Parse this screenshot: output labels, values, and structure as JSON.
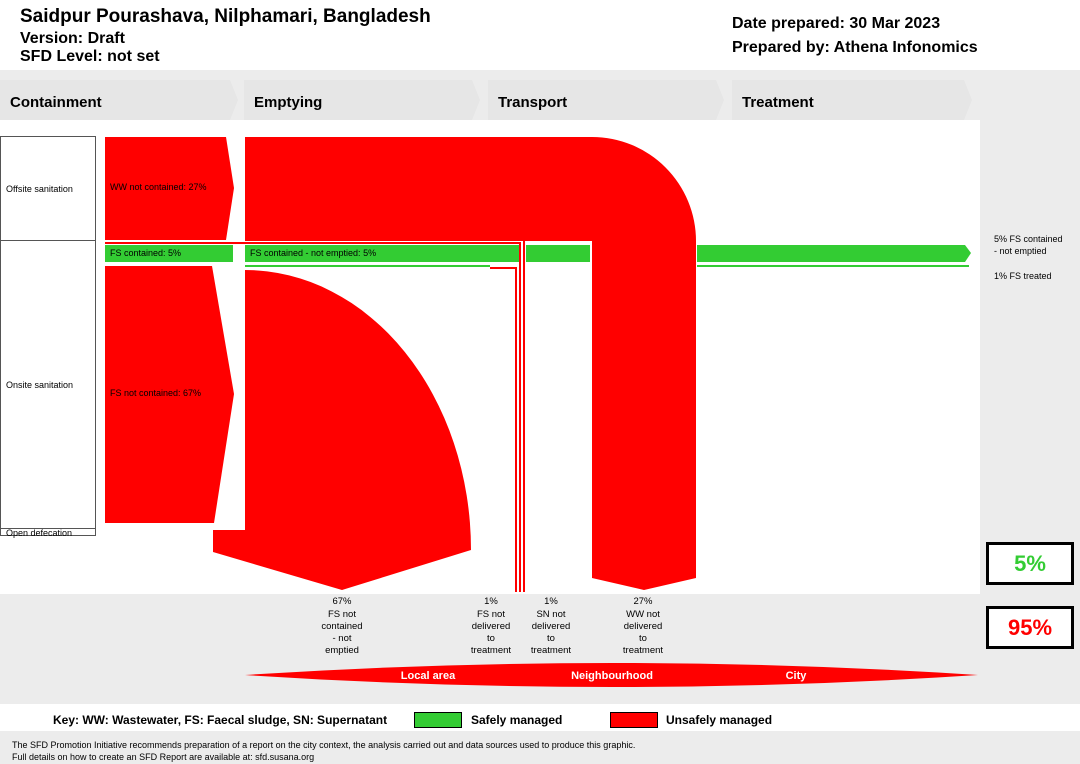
{
  "header": {
    "title": "Saidpur Pourashava, Nilphamari, Bangladesh",
    "version": "Version: Draft",
    "sfd_level": "SFD Level: not set",
    "date_prepared": "Date prepared: 30 Mar 2023",
    "prepared_by": "Prepared by: Athena Infonomics"
  },
  "stages": [
    "Containment",
    "Emptying",
    "Transport",
    "Treatment"
  ],
  "rows": {
    "offsite": "Offsite sanitation",
    "onsite": "Onsite sanitation",
    "open": "Open defecation"
  },
  "flows": {
    "ww_not_contained": "WW not contained: 27%",
    "fs_contained": "FS contained: 5%",
    "fs_contained_not_emptied": "FS contained - not emptied: 5%",
    "fs_not_contained": "FS not contained: 67%"
  },
  "right_notes": {
    "contained_not_emptied_1": "5% FS contained",
    "contained_not_emptied_2": "- not emptied",
    "treated": "1% FS treated"
  },
  "bottom_labels": [
    [
      "67%",
      "FS not",
      "contained",
      "- not",
      "emptied"
    ],
    [
      "1%",
      "FS not",
      "delivered",
      "to",
      "treatment"
    ],
    [
      "1%",
      "SN not",
      "delivered",
      "to",
      "treatment"
    ],
    [
      "27%",
      "WW not",
      "delivered",
      "to",
      "treatment"
    ]
  ],
  "areas": {
    "local": "Local area",
    "neighbourhood": "Neighbourhood",
    "city": "City"
  },
  "totals": {
    "safe": "5%",
    "unsafe": "95%",
    "safe_color": "#33cc33",
    "unsafe_color": "#ff0000"
  },
  "key": {
    "label": "Key: WW: Wastewater, FS: Faecal sludge, SN: Supernatant",
    "safe": "Safely managed",
    "unsafe": "Unsafely managed"
  },
  "footer": {
    "line1": "The SFD Promotion Initiative recommends preparation of a report on the city context, the analysis carried out and data sources used to produce this graphic.",
    "line2": "Full details on how to create an SFD Report are available at: sfd.susana.org"
  }
}
